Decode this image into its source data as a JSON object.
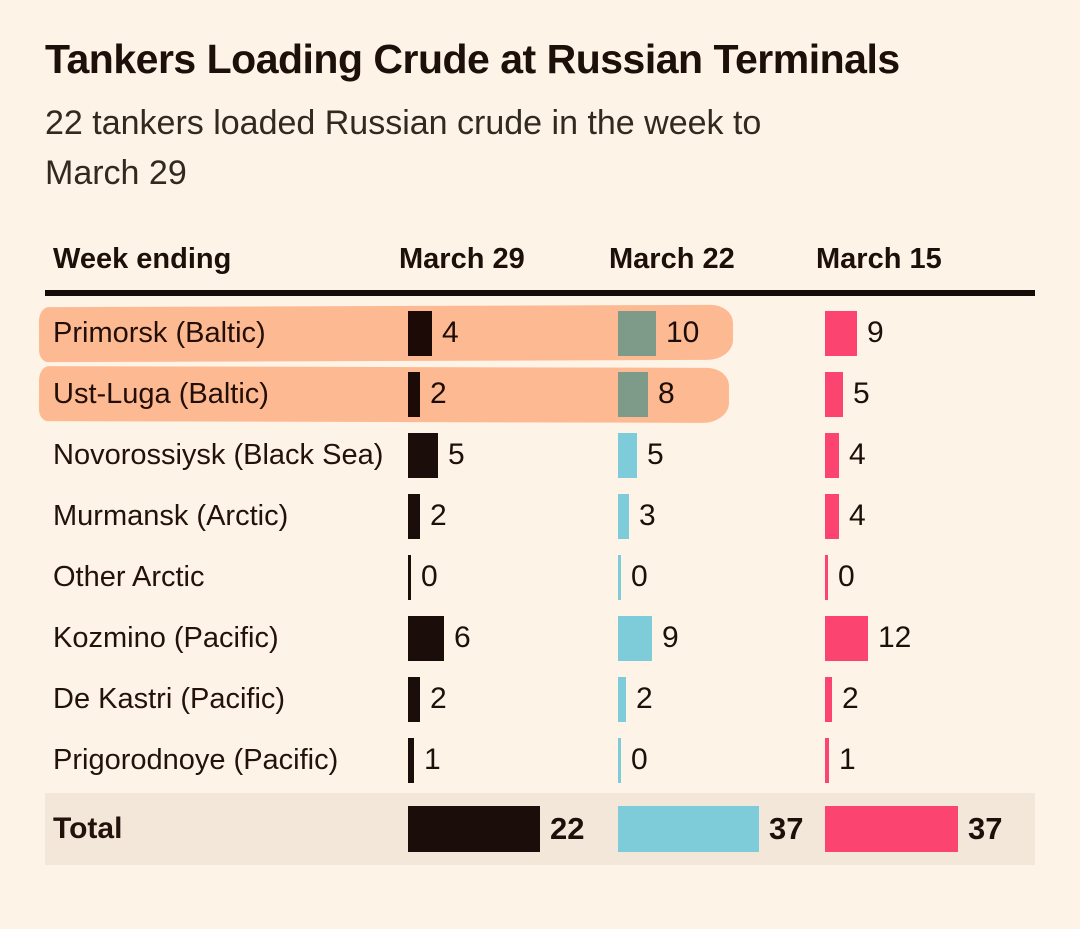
{
  "title": "Tankers Loading Crude at Russian Terminals",
  "subtitle": "22 tankers loaded Russian crude in the week to\nMarch 29",
  "table": {
    "header": {
      "label": "Week ending",
      "columns": [
        "March 29",
        "March 22",
        "March 15"
      ]
    },
    "rows": [
      {
        "label": "Primorsk (Baltic)",
        "values": [
          4,
          10,
          9
        ],
        "highlighted": true
      },
      {
        "label": "Ust-Luga (Baltic)",
        "values": [
          2,
          8,
          5
        ],
        "highlighted": true
      },
      {
        "label": "Novorossiysk (Black Sea)",
        "values": [
          5,
          5,
          4
        ],
        "highlighted": false
      },
      {
        "label": "Murmansk (Arctic)",
        "values": [
          2,
          3,
          4
        ],
        "highlighted": false
      },
      {
        "label": "Other Arctic",
        "values": [
          0,
          0,
          0
        ],
        "highlighted": false
      },
      {
        "label": "Kozmino (Pacific)",
        "values": [
          6,
          9,
          12
        ],
        "highlighted": false
      },
      {
        "label": "De Kastri (Pacific)",
        "values": [
          2,
          2,
          2
        ],
        "highlighted": false
      },
      {
        "label": "Prigorodnoye (Pacific)",
        "values": [
          1,
          0,
          1
        ],
        "highlighted": false
      }
    ],
    "total": {
      "label": "Total",
      "values": [
        22,
        37,
        37
      ]
    }
  },
  "colors": {
    "background": "#FDF3E6",
    "march29_bar": "#1B0D09",
    "march22_bar": "#7ECBD9",
    "march15_bar": "#FB4570",
    "highlight": "#FFC3A2",
    "total_row_bg": "#F2E7D8",
    "header_rule": "#160B07",
    "text": "#1D0F0A"
  },
  "chart_data": {
    "type": "bar",
    "orientation": "horizontal",
    "title": "Tankers Loading Crude at Russian Terminals",
    "subtitle": "22 tankers loaded Russian crude in the week to March 29",
    "categories": [
      "Primorsk (Baltic)",
      "Ust-Luga (Baltic)",
      "Novorossiysk (Black Sea)",
      "Murmansk (Arctic)",
      "Other Arctic",
      "Kozmino (Pacific)",
      "De Kastri (Pacific)",
      "Prigorodnoye (Pacific)"
    ],
    "series": [
      {
        "name": "March 29",
        "color": "#1B0D09",
        "values": [
          4,
          2,
          5,
          2,
          0,
          6,
          2,
          1
        ],
        "total": 22
      },
      {
        "name": "March 22",
        "color": "#7ECBD9",
        "values": [
          10,
          8,
          5,
          3,
          0,
          9,
          2,
          0
        ],
        "total": 37
      },
      {
        "name": "March 15",
        "color": "#FB4570",
        "values": [
          9,
          5,
          4,
          4,
          0,
          12,
          2,
          1
        ],
        "total": 37
      }
    ],
    "highlighted_categories": [
      "Primorsk (Baltic)",
      "Ust-Luga (Baltic)"
    ],
    "value_labels": "shown next to each bar",
    "legend_position": "column headers",
    "grid": false
  }
}
